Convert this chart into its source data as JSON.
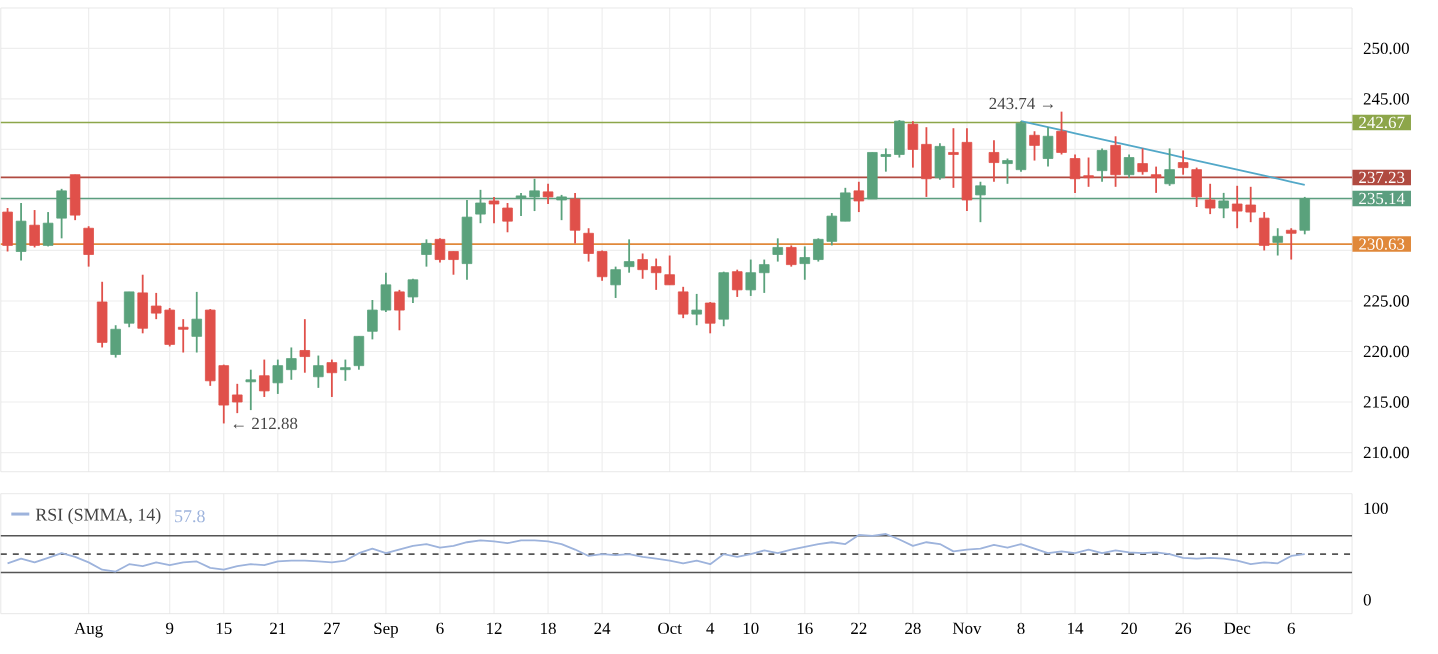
{
  "chart_data": [
    {
      "type": "candlestick",
      "categories": [
        null,
        null,
        null,
        null,
        null,
        null,
        null,
        null,
        null,
        null,
        null,
        null,
        null,
        null,
        null,
        null,
        null,
        null,
        null,
        null,
        null,
        null,
        null,
        null,
        null,
        null,
        null,
        null,
        null,
        null,
        null,
        null,
        null,
        null,
        null,
        null,
        null,
        null,
        null,
        null,
        null,
        null,
        null,
        null,
        null,
        null,
        null,
        null,
        null,
        null,
        null,
        null,
        null,
        null,
        null,
        null,
        null,
        null,
        null,
        null,
        null,
        null,
        null,
        null,
        null,
        null,
        null,
        null,
        null,
        null,
        null,
        null,
        null,
        null,
        null,
        null,
        null,
        null,
        null,
        null,
        null,
        null,
        null,
        null,
        null,
        null,
        null,
        null,
        null,
        null,
        null,
        null,
        null,
        null,
        null,
        null,
        null
      ],
      "ohlc": [
        [
          233.8,
          234.2,
          229.9,
          230.5
        ],
        [
          229.9,
          234.7,
          229.0,
          232.9
        ],
        [
          232.5,
          234.0,
          230.3,
          230.5
        ],
        [
          230.5,
          233.8,
          230.4,
          232.7
        ],
        [
          233.2,
          236.1,
          231.2,
          235.9
        ],
        [
          237.5,
          237.5,
          233.0,
          233.5
        ],
        [
          232.2,
          232.4,
          228.4,
          229.6
        ],
        [
          224.9,
          226.9,
          220.4,
          220.9
        ],
        [
          219.7,
          222.6,
          219.4,
          222.2
        ],
        [
          222.8,
          225.9,
          222.4,
          225.9
        ],
        [
          225.8,
          227.6,
          221.8,
          222.3
        ],
        [
          224.5,
          225.8,
          223.2,
          223.8
        ],
        [
          224.1,
          224.3,
          220.5,
          220.7
        ],
        [
          222.4,
          223.2,
          219.9,
          222.2
        ],
        [
          221.5,
          225.9,
          219.9,
          223.2
        ],
        [
          224.1,
          224.2,
          216.6,
          217.1
        ],
        [
          218.6,
          218.7,
          212.88,
          214.7
        ],
        [
          215.7,
          216.8,
          213.9,
          215.0
        ],
        [
          217.0,
          218.2,
          214.2,
          217.2
        ],
        [
          217.6,
          219.2,
          215.5,
          216.1
        ],
        [
          216.9,
          219.2,
          215.8,
          218.6
        ],
        [
          218.2,
          220.4,
          217.2,
          219.3
        ],
        [
          220.1,
          223.2,
          217.9,
          219.5
        ],
        [
          217.5,
          219.6,
          216.4,
          218.6
        ],
        [
          218.9,
          219.2,
          215.5,
          217.9
        ],
        [
          218.2,
          219.2,
          217.1,
          218.4
        ],
        [
          218.6,
          221.5,
          218.2,
          221.5
        ],
        [
          222.0,
          225.1,
          221.2,
          224.1
        ],
        [
          224.1,
          227.8,
          223.9,
          226.6
        ],
        [
          225.9,
          226.1,
          222.1,
          224.1
        ],
        [
          225.4,
          227.2,
          224.8,
          227.1
        ],
        [
          229.6,
          231.1,
          228.4,
          230.7
        ],
        [
          231.1,
          231.2,
          228.8,
          229.1
        ],
        [
          229.9,
          229.9,
          227.6,
          229.1
        ],
        [
          228.7,
          235.0,
          227.1,
          233.3
        ],
        [
          233.6,
          236.0,
          232.7,
          234.7
        ],
        [
          234.9,
          235.3,
          232.7,
          234.6
        ],
        [
          234.2,
          234.7,
          231.8,
          232.9
        ],
        [
          235.2,
          235.7,
          233.4,
          235.4
        ],
        [
          235.3,
          237.1,
          233.9,
          235.9
        ],
        [
          235.8,
          236.6,
          234.6,
          235.3
        ],
        [
          235.0,
          235.5,
          233.0,
          235.3
        ],
        [
          235.1,
          235.7,
          230.7,
          232.0
        ],
        [
          231.7,
          232.2,
          228.9,
          229.7
        ],
        [
          229.9,
          230.0,
          227.0,
          227.4
        ],
        [
          226.6,
          228.4,
          225.3,
          228.1
        ],
        [
          228.4,
          231.1,
          227.8,
          228.9
        ],
        [
          229.1,
          229.7,
          227.2,
          228.1
        ],
        [
          228.4,
          229.2,
          226.1,
          227.8
        ],
        [
          227.6,
          229.5,
          226.6,
          226.6
        ],
        [
          225.9,
          226.4,
          223.3,
          223.7
        ],
        [
          223.7,
          225.7,
          222.6,
          224.1
        ],
        [
          224.8,
          224.9,
          221.8,
          222.8
        ],
        [
          223.2,
          227.9,
          222.5,
          227.8
        ],
        [
          227.9,
          228.1,
          225.4,
          226.1
        ],
        [
          226.1,
          229.1,
          225.5,
          227.8
        ],
        [
          227.8,
          229.1,
          225.8,
          228.6
        ],
        [
          229.6,
          231.2,
          228.9,
          230.3
        ],
        [
          230.3,
          230.5,
          228.4,
          228.6
        ],
        [
          228.7,
          230.4,
          227.1,
          229.3
        ],
        [
          229.1,
          231.2,
          228.9,
          231.1
        ],
        [
          230.9,
          233.7,
          230.5,
          233.4
        ],
        [
          232.9,
          236.2,
          232.9,
          235.7
        ],
        [
          235.9,
          236.8,
          233.8,
          234.9
        ],
        [
          235.1,
          239.7,
          235.1,
          239.7
        ],
        [
          239.3,
          240.1,
          237.8,
          239.5
        ],
        [
          239.5,
          242.9,
          239.2,
          242.8
        ],
        [
          242.5,
          242.8,
          238.2,
          240.0
        ],
        [
          240.5,
          242.2,
          235.3,
          237.1
        ],
        [
          237.2,
          240.6,
          237.0,
          240.3
        ],
        [
          239.7,
          242.1,
          236.2,
          239.5
        ],
        [
          240.7,
          242.1,
          233.9,
          235.0
        ],
        [
          235.5,
          236.8,
          232.8,
          236.4
        ],
        [
          239.7,
          240.9,
          236.8,
          238.7
        ],
        [
          238.6,
          239.1,
          236.6,
          238.9
        ],
        [
          238.0,
          242.8,
          237.8,
          242.6
        ],
        [
          241.4,
          241.8,
          238.9,
          240.4
        ],
        [
          239.1,
          242.2,
          238.3,
          241.3
        ],
        [
          241.8,
          243.74,
          239.5,
          239.7
        ],
        [
          239.1,
          239.5,
          235.7,
          237.1
        ],
        [
          237.4,
          239.2,
          236.3,
          237.2
        ],
        [
          237.9,
          240.1,
          236.8,
          239.9
        ],
        [
          240.4,
          241.3,
          236.3,
          237.5
        ],
        [
          237.5,
          239.5,
          237.2,
          239.2
        ],
        [
          238.6,
          240.1,
          237.5,
          237.8
        ],
        [
          237.5,
          238.3,
          235.7,
          237.2
        ],
        [
          236.6,
          240.1,
          236.4,
          238.0
        ],
        [
          238.7,
          239.9,
          237.5,
          238.2
        ],
        [
          238.0,
          238.2,
          234.3,
          235.3
        ],
        [
          235.0,
          236.6,
          233.6,
          234.2
        ],
        [
          234.2,
          235.7,
          233.2,
          234.9
        ],
        [
          234.6,
          236.4,
          232.2,
          233.9
        ],
        [
          234.5,
          236.3,
          232.8,
          233.8
        ],
        [
          233.2,
          233.8,
          230.0,
          230.5
        ],
        [
          230.8,
          232.2,
          229.5,
          231.4
        ],
        [
          232.0,
          232.2,
          229.1,
          231.7
        ],
        [
          232.0,
          235.3,
          231.6,
          235.14
        ]
      ],
      "series": [
        {
          "type": "line",
          "color": "#52a8c8",
          "values": [
            null,
            null,
            null,
            null,
            null,
            null,
            null,
            null,
            null,
            null,
            null,
            null,
            null,
            null,
            null,
            null,
            null,
            null,
            null,
            null,
            null,
            null,
            null,
            null,
            null,
            null,
            null,
            null,
            null,
            null,
            null,
            null,
            null,
            null,
            null,
            null,
            null,
            null,
            null,
            null,
            null,
            null,
            null,
            null,
            null,
            null,
            null,
            null,
            null,
            null,
            null,
            null,
            null,
            null,
            null,
            null,
            null,
            null,
            null,
            null,
            null,
            null,
            null,
            null,
            null,
            null,
            null,
            null,
            null,
            null,
            null,
            null,
            null,
            null,
            null,
            242.8,
            242.5,
            242.2,
            241.9,
            241.6,
            241.3,
            241.0,
            240.7,
            240.4,
            240.1,
            239.8,
            239.5,
            239.2,
            238.9,
            238.6,
            238.3,
            238.0,
            237.7,
            237.4,
            237.1,
            236.8,
            236.5
          ]
        }
      ],
      "ref_lines": [
        {
          "axis": "y",
          "value": 242.67,
          "label": "242.67",
          "color": "#8da64a"
        },
        {
          "axis": "y",
          "value": 237.23,
          "label": "237.23",
          "color": "#b04a40"
        },
        {
          "axis": "y",
          "value": 235.14,
          "label": "235.14",
          "color": "#5b9e7f"
        },
        {
          "axis": "y",
          "value": 230.63,
          "label": "230.63",
          "color": "#e0883a"
        }
      ],
      "annotations": [
        {
          "text": "243.74 →",
          "y": 243.74
        },
        "← 212.88"
      ],
      "ylim": [
        208.1,
        254
      ],
      "yticks": [
        {
          "value": 210,
          "label": "210.00"
        },
        {
          "value": 215,
          "label": "215.00"
        },
        {
          "value": 220,
          "label": "220.00"
        },
        {
          "value": 225,
          "label": "225.00"
        },
        {
          "value": 230,
          "label": null
        },
        {
          "value": 235,
          "label": null
        },
        {
          "value": 240,
          "label": null
        },
        {
          "value": 245,
          "label": "245.00"
        },
        {
          "value": 250,
          "label": "250.00"
        }
      ],
      "tick_labels": "y",
      "grid": true
    },
    {
      "type": "line",
      "categories": [
        null,
        null,
        null,
        null,
        null,
        null,
        "Aug",
        null,
        null,
        null,
        null,
        null,
        "9",
        null,
        null,
        null,
        "15",
        null,
        null,
        null,
        "21",
        null,
        null,
        null,
        "27",
        null,
        null,
        null,
        "Sep",
        null,
        null,
        null,
        "6",
        null,
        null,
        null,
        "12",
        null,
        null,
        null,
        "18",
        null,
        null,
        null,
        "24",
        null,
        null,
        null,
        null,
        "Oct",
        null,
        null,
        "4",
        null,
        null,
        "10",
        null,
        null,
        null,
        "16",
        null,
        null,
        null,
        "22",
        null,
        null,
        null,
        "28",
        null,
        null,
        null,
        "Nov",
        null,
        null,
        null,
        "8",
        null,
        null,
        null,
        "14",
        null,
        null,
        null,
        "20",
        null,
        null,
        null,
        "26",
        null,
        null,
        null,
        "Dec",
        null,
        null,
        null,
        "6",
        null
      ],
      "series": [
        {
          "name": "RSI (SMMA, 14)",
          "color": "#9db3dc",
          "values": [
            40,
            45,
            41,
            46,
            51,
            47,
            41,
            33,
            31,
            39,
            37,
            41,
            38,
            41,
            42,
            35,
            33,
            37,
            39,
            38,
            42,
            43,
            43,
            42,
            41,
            43,
            51,
            56,
            51,
            55,
            59,
            61,
            57,
            59,
            63,
            65,
            64,
            62,
            65,
            65,
            64,
            61,
            55,
            48,
            50,
            49,
            50,
            47,
            45,
            43,
            40,
            43,
            39,
            50,
            47,
            50,
            54,
            51,
            55,
            58,
            61,
            63,
            61,
            71,
            70,
            72,
            66,
            59,
            63,
            61,
            53,
            55,
            56,
            60,
            57,
            61,
            56,
            51,
            53,
            51,
            55,
            51,
            54,
            52,
            51,
            52,
            50,
            46,
            45,
            46,
            45,
            43,
            39,
            41,
            40,
            48,
            50
          ]
        }
      ],
      "annotations": [
        "57.8"
      ],
      "ref_lines": [
        {
          "axis": "y",
          "value": 70,
          "color": "#555555"
        },
        {
          "axis": "y",
          "value": 50,
          "color": "#555555",
          "line_style": "dashed"
        },
        {
          "axis": "y",
          "value": 30,
          "color": "#555555"
        }
      ],
      "ylim": [
        -15,
        116
      ],
      "yticks": [
        0,
        100
      ],
      "grid": "x",
      "legend": "top left"
    }
  ]
}
